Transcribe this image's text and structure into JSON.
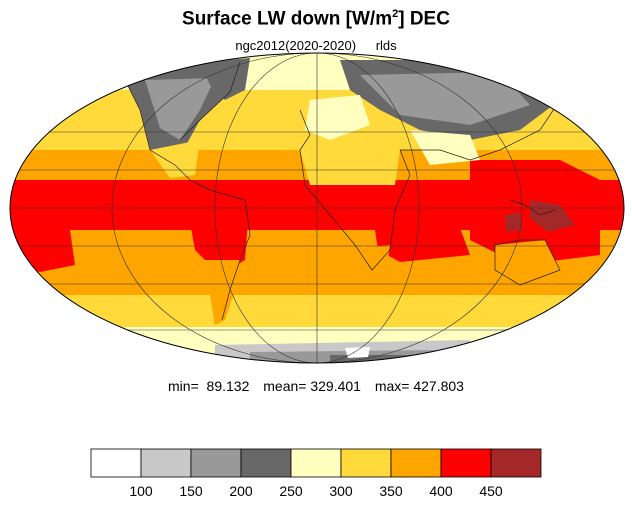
{
  "title": {
    "main": "Surface LW down [W/m",
    "sup": "2",
    "tail": "]  DEC"
  },
  "subtitle": {
    "experiment": "ngc2012(2020-2020)",
    "variable": "rlds"
  },
  "stats": {
    "min": "min=  89.132",
    "mean": "mean= 329.401",
    "max": "max= 427.803"
  },
  "colorbar": {
    "colors": [
      "#ffffff",
      "#c8c8c8",
      "#999999",
      "#686868",
      "#ffffc0",
      "#ffda3a",
      "#ffa500",
      "#ff0000",
      "#a52828"
    ],
    "labels": [
      "100",
      "150",
      "200",
      "250",
      "300",
      "350",
      "400",
      "450"
    ]
  },
  "map": {
    "projection": "mollweide",
    "band_colors": {
      "polar": "#ffffc0",
      "highlat": "#ffda3a",
      "midlat": "#ffa500",
      "tropics": "#ff0000",
      "ice_light": "#c8c8c8",
      "ice_mid": "#999999",
      "ice_dark": "#686868"
    }
  }
}
